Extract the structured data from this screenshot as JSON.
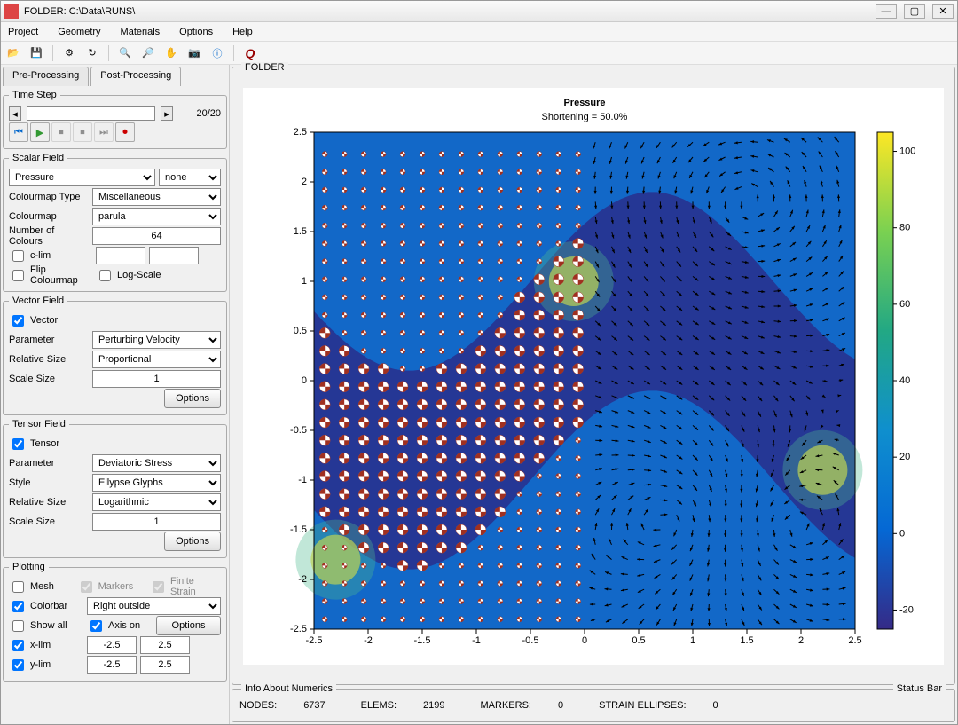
{
  "window": {
    "title": "FOLDER: C:\\Data\\RUNS\\"
  },
  "menubar": [
    "Project",
    "Geometry",
    "Materials",
    "Options",
    "Help"
  ],
  "tabs": {
    "pre": "Pre-Processing",
    "post": "Post-Processing"
  },
  "timestep": {
    "legend": "Time Step",
    "display": "20/20"
  },
  "scalarfield": {
    "legend": "Scalar Field",
    "field": "Pressure",
    "mode": "none",
    "colourmap_type_label": "Colourmap Type",
    "colourmap_type": "Miscellaneous",
    "colourmap_label": "Colourmap",
    "colourmap": "parula",
    "ncolours_label": "Number of Colours",
    "ncolours": "64",
    "clim_label": "c-lim",
    "flip_label": "Flip Colourmap",
    "log_label": "Log-Scale"
  },
  "vectorfield": {
    "legend": "Vector Field",
    "vector_label": "Vector",
    "parameter_label": "Parameter",
    "parameter": "Perturbing Velocity",
    "relsize_label": "Relative Size",
    "relsize": "Proportional",
    "scale_label": "Scale Size",
    "scale": "1",
    "options_label": "Options"
  },
  "tensorfield": {
    "legend": "Tensor Field",
    "tensor_label": "Tensor",
    "parameter_label": "Parameter",
    "parameter": "Deviatoric Stress",
    "style_label": "Style",
    "style": "Ellypse Glyphs",
    "relsize_label": "Relative Size",
    "relsize": "Logarithmic",
    "scale_label": "Scale Size",
    "scale": "1",
    "options_label": "Options"
  },
  "plotting": {
    "legend": "Plotting",
    "mesh_label": "Mesh",
    "markers_label": "Markers",
    "finitestrain_label": "Finite Strain",
    "colorbar_label": "Colorbar",
    "colorbar_pos": "Right outside",
    "showall_label": "Show all",
    "axison_label": "Axis on",
    "options_label": "Options",
    "xlim_label": "x-lim",
    "xlim_lo": "-2.5",
    "xlim_hi": "2.5",
    "ylim_label": "y-lim",
    "ylim_lo": "-2.5",
    "ylim_hi": "2.5"
  },
  "plotpanel": {
    "legend": "FOLDER"
  },
  "chart": {
    "title": "Pressure",
    "subtitle": "Shortening = 50.0%",
    "xlim": [
      -2.5,
      2.5
    ],
    "ylim": [
      -2.5,
      2.5
    ],
    "xticks": [
      -2.5,
      -2,
      -1.5,
      -1,
      -0.5,
      0,
      0.5,
      1,
      1.5,
      2,
      2.5
    ],
    "yticks": [
      -2.5,
      -2,
      -1.5,
      -1,
      -0.5,
      0,
      0.5,
      1,
      1.5,
      2,
      2.5
    ],
    "cbar_ticks": [
      -20,
      0,
      20,
      40,
      60,
      80,
      100
    ],
    "cbar_min": -25,
    "cbar_max": 105,
    "title_fontsize": 13,
    "subtitle_fontsize": 11,
    "tick_fontsize": 10,
    "parula": [
      "#352a87",
      "#0568d4",
      "#0f8fce",
      "#22a884",
      "#7ad151",
      "#fde725"
    ],
    "background_field": "#1268c8",
    "glyph_color": "#a03020",
    "arrow_color": "#000000"
  },
  "infobar": {
    "legend": "Info About Numerics",
    "status_legend": "Status Bar",
    "nodes_label": "NODES:",
    "nodes": "6737",
    "elems_label": "ELEMS:",
    "elems": "2199",
    "markers_label": "MARKERS:",
    "markers": "0",
    "strain_label": "STRAIN ELLIPSES:",
    "strain": "0"
  }
}
